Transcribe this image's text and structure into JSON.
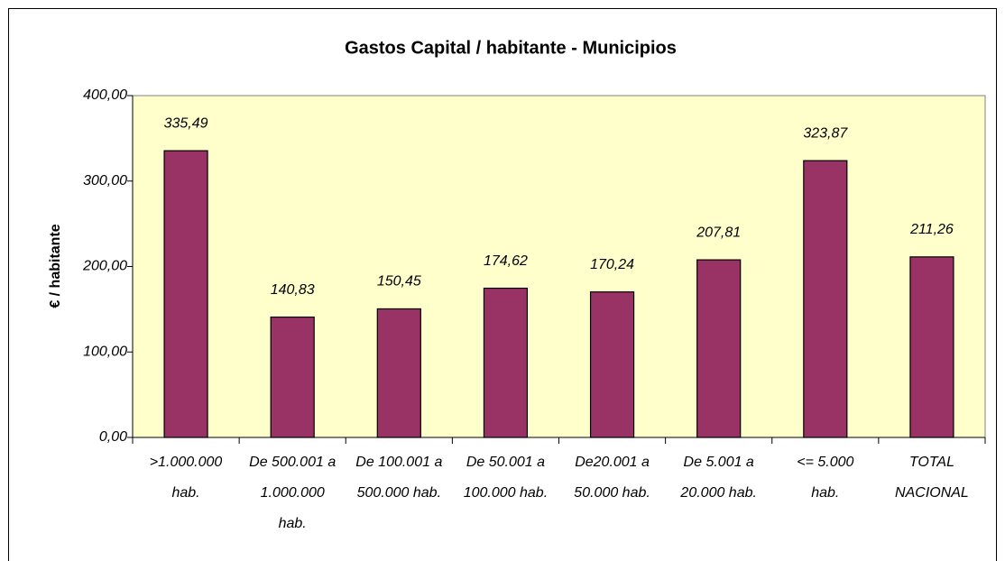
{
  "chart_data": {
    "type": "bar",
    "title": "Gastos Capital / habitante - Municipios",
    "ylabel": "€ / habitante",
    "categories": [
      [
        ">1.000.000",
        "hab."
      ],
      [
        "De 500.001 a",
        "1.000.000",
        "hab."
      ],
      [
        "De 100.001 a",
        "500.000 hab."
      ],
      [
        "De 50.001 a",
        "100.000 hab."
      ],
      [
        "De20.001 a",
        "50.000 hab."
      ],
      [
        "De 5.001 a",
        "20.000 hab."
      ],
      [
        "<= 5.000",
        "hab."
      ],
      [
        "TOTAL",
        "NACIONAL"
      ]
    ],
    "values": [
      335.49,
      140.83,
      150.45,
      174.62,
      170.24,
      207.81,
      323.87,
      211.26
    ],
    "value_labels": [
      "335,49",
      "140,83",
      "150,45",
      "174,62",
      "170,24",
      "207,81",
      "323,87",
      "211,26"
    ],
    "color": "#993366",
    "plot_background": "#FFFFCC",
    "ylim": [
      0,
      400
    ],
    "yticks": [
      {
        "value": 0,
        "label": "0,00"
      },
      {
        "value": 100,
        "label": "100,00"
      },
      {
        "value": 200,
        "label": "200,00"
      },
      {
        "value": 300,
        "label": "300,00"
      },
      {
        "value": 400,
        "label": "400,00"
      }
    ]
  }
}
